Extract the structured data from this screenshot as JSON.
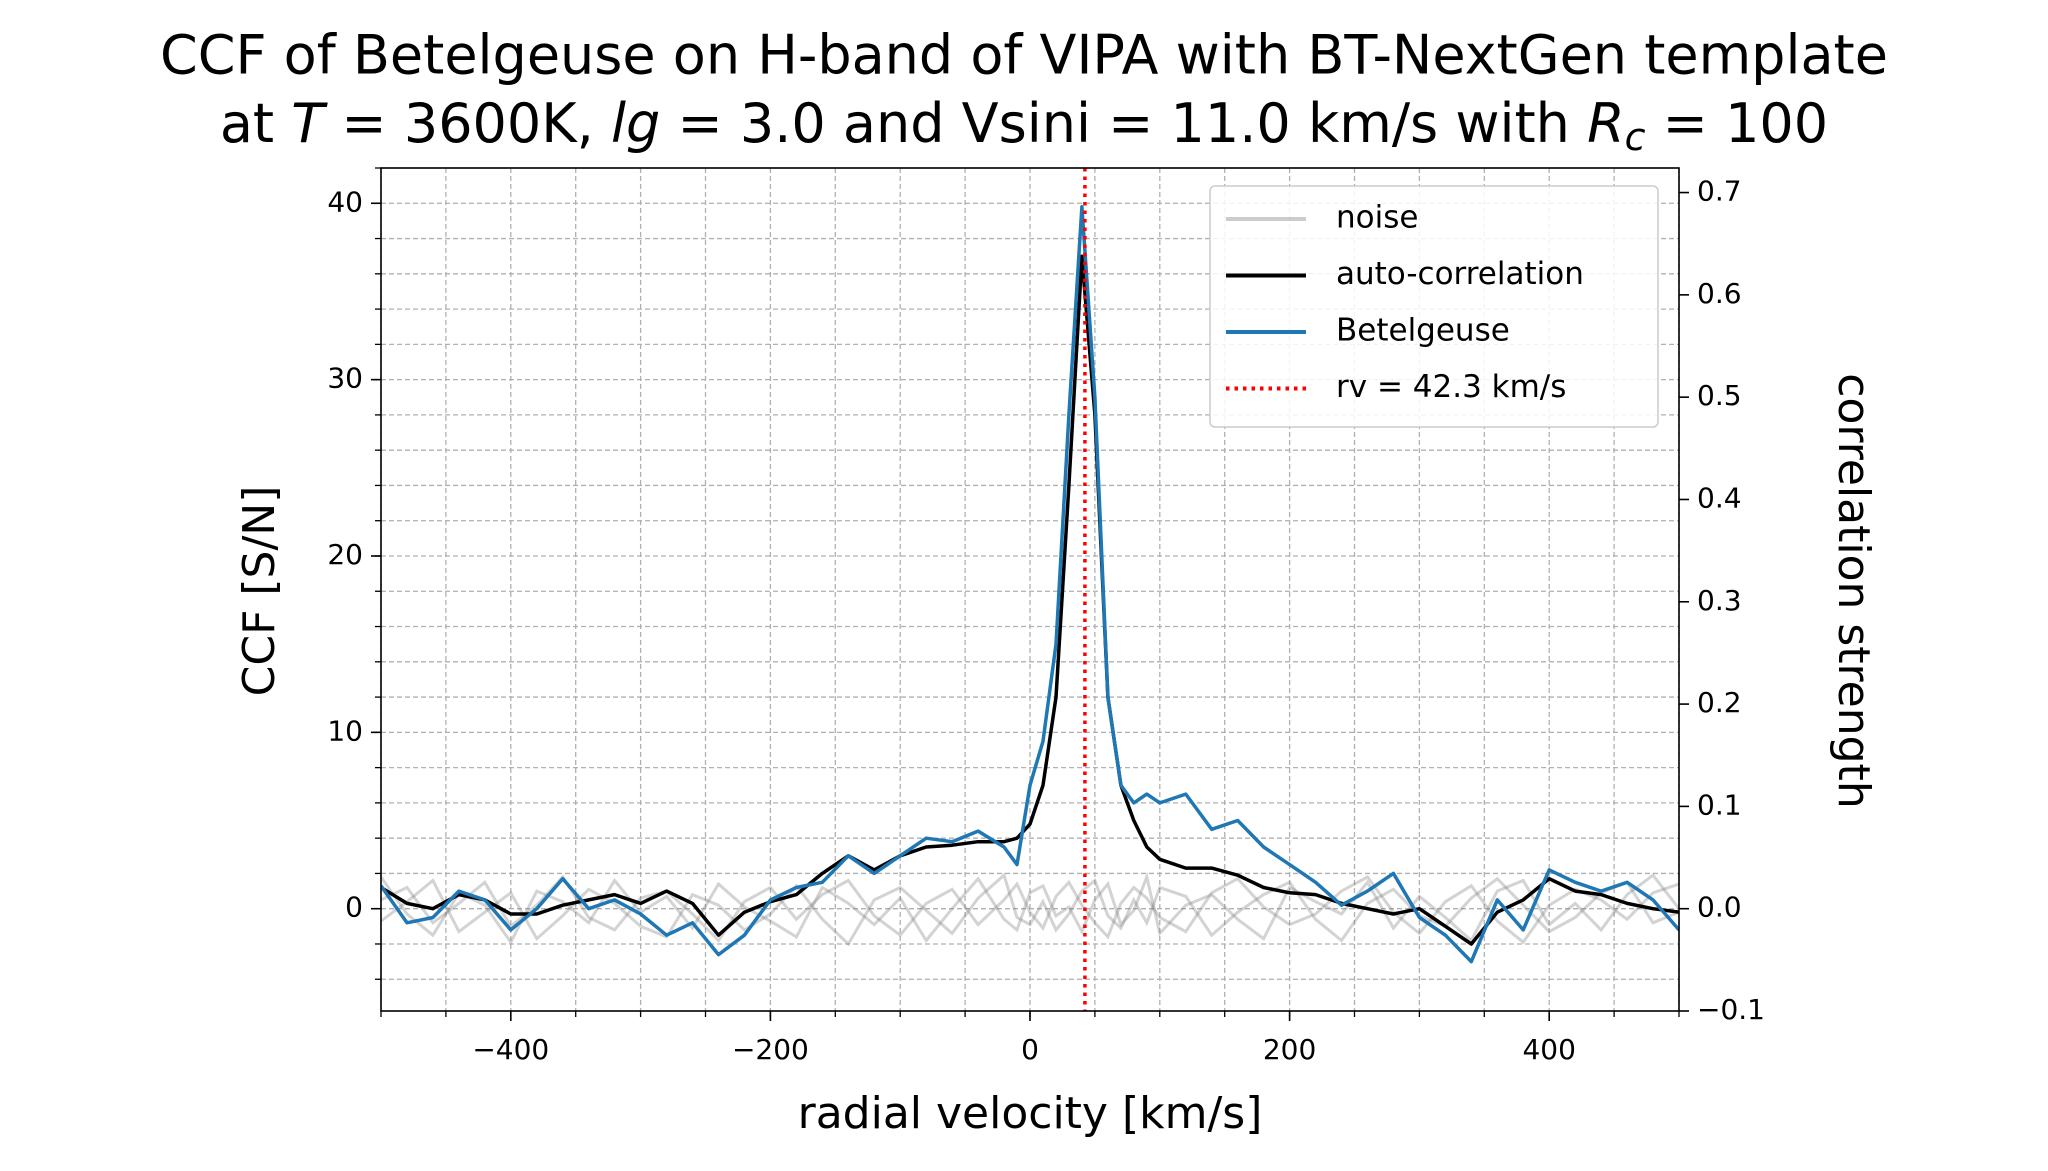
{
  "chart_data": {
    "type": "line",
    "title": {
      "line1": "CCF of Betelgeuse on H-band of VIPA with BT-NextGen template",
      "line2": [
        {
          "text": "at "
        },
        {
          "text": "T",
          "italic": true
        },
        {
          "text": " = 3600K, "
        },
        {
          "text": "lg",
          "italic": true
        },
        {
          "text": " = 3.0 and Vsini = 11.0 km/s with "
        },
        {
          "text": "R",
          "italic": true
        },
        {
          "text": "c",
          "italic": true,
          "sub": true
        },
        {
          "text": " = 100"
        }
      ]
    },
    "xlabel": "radial velocity [km/s]",
    "ylabel": "CCF [S/N]",
    "y2label": "correlation strength",
    "x": [
      -500,
      -480,
      -460,
      -440,
      -420,
      -400,
      -380,
      -360,
      -340,
      -320,
      -300,
      -280,
      -260,
      -240,
      -220,
      -200,
      -180,
      -160,
      -140,
      -120,
      -100,
      -80,
      -60,
      -40,
      -20,
      -10,
      0,
      10,
      20,
      30,
      40,
      50,
      60,
      70,
      80,
      90,
      100,
      120,
      140,
      160,
      180,
      200,
      220,
      240,
      260,
      280,
      300,
      320,
      340,
      360,
      380,
      400,
      420,
      440,
      460,
      480,
      500
    ],
    "series": [
      {
        "name": "noise",
        "color": "#808080",
        "traces": [
          [
            0.5,
            1.2,
            -0.8,
            0.3,
            1.5,
            -1.0,
            0.2,
            1.8,
            -0.5,
            -1.2,
            0.6,
            1.0,
            -0.3,
            -1.8,
            0.4,
            1.2,
            -0.6,
            0.8,
            1.6,
            -0.4,
            -1.5,
            0.3,
            1.1,
            -0.9,
            0.5,
            1.4,
            -0.2,
            -1.1,
            0.7,
            1.5,
            0.2,
            -0.8,
            -1.6,
            0.3,
            1.2,
            0.6,
            -0.5,
            -1.3,
            0.9,
            1.7,
            0.1,
            -0.9,
            -0.3,
            1.0,
            1.8,
            -0.2,
            -1.4,
            0.4,
            1.3,
            -0.7,
            -1.9,
            0.2,
            1.1,
            0.5,
            -0.6,
            0.9,
            1.4
          ],
          [
            -0.7,
            0.4,
            1.6,
            -1.3,
            -0.2,
            0.9,
            -1.7,
            -0.4,
            1.1,
            0.3,
            -1.0,
            -1.6,
            0.8,
            0.2,
            -1.2,
            -0.3,
            1.3,
            -0.6,
            -2.0,
            0.5,
            1.2,
            -0.1,
            -1.4,
            0.6,
            1.9,
            -0.5,
            -0.9,
            0.4,
            -1.2,
            -0.3,
            1.0,
            1.6,
            -0.4,
            -1.1,
            0.5,
            -0.8,
            1.2,
            0.7,
            -1.5,
            -0.2,
            0.8,
            1.5,
            -0.6,
            -1.8,
            0.3,
            1.1,
            -0.4,
            -1.0,
            0.6,
            1.7,
            0.2,
            -1.3,
            -0.5,
            0.9,
            1.5,
            -0.8,
            -0.2
          ],
          [
            1.8,
            -0.3,
            -1.5,
            0.9,
            0.2,
            -1.9,
            1.0,
            0.4,
            -0.8,
            1.6,
            -0.2,
            0.7,
            -1.1,
            1.4,
            0.1,
            -0.7,
            -1.6,
            1.2,
            0.3,
            -0.9,
            0.6,
            -1.8,
            0.0,
            1.7,
            -0.6,
            -1.2,
            0.9,
            1.3,
            -0.4,
            0.1,
            -1.3,
            0.5,
            1.4,
            -0.9,
            -0.1,
            1.8,
            -1.4,
            0.2,
            0.8,
            -0.6,
            -1.7,
            1.2,
            0.4,
            -0.3,
            1.5,
            -1.1,
            0.7,
            -0.5,
            -1.8,
            1.0,
            1.6,
            -0.9,
            0.3,
            -1.2,
            0.8,
            1.9,
            0.0
          ]
        ]
      },
      {
        "name": "auto-correlation",
        "color": "#000000",
        "values": [
          1.2,
          0.3,
          0.0,
          0.8,
          0.5,
          -0.3,
          -0.3,
          0.2,
          0.5,
          0.8,
          0.3,
          1.0,
          0.3,
          -1.5,
          -0.2,
          0.4,
          0.8,
          2.0,
          3.0,
          2.2,
          3.0,
          3.5,
          3.6,
          3.8,
          3.8,
          4.0,
          4.8,
          7,
          12,
          24,
          37,
          28,
          12,
          7,
          5,
          3.5,
          2.8,
          2.3,
          2.3,
          1.9,
          1.2,
          0.9,
          0.8,
          0.3,
          0.0,
          -0.3,
          0.0,
          -1.0,
          -2.0,
          -0.2,
          0.5,
          1.7,
          1.0,
          0.8,
          0.3,
          0.0,
          -0.2
        ]
      },
      {
        "name": "Betelgeuse",
        "color": "#1f77b4",
        "values": [
          1.3,
          -0.8,
          -0.5,
          1.0,
          0.5,
          -1.2,
          0.0,
          1.7,
          0.0,
          0.5,
          -0.3,
          -1.5,
          -0.8,
          -2.6,
          -1.5,
          0.5,
          1.2,
          1.5,
          3.0,
          2.0,
          3.0,
          4.0,
          3.8,
          4.4,
          3.5,
          2.5,
          7.0,
          9.5,
          15,
          28,
          39.8,
          29,
          12,
          7,
          6,
          6.5,
          6.0,
          6.5,
          4.5,
          5.0,
          3.5,
          2.5,
          1.5,
          0.2,
          1.0,
          2.0,
          -0.5,
          -1.5,
          -3.0,
          0.5,
          -1.2,
          2.2,
          1.5,
          1.0,
          1.5,
          0.5,
          -1.2
        ]
      }
    ],
    "vline": {
      "name": "rv = 42.3 km/s",
      "x": 42.3,
      "color": "#ff0000"
    },
    "xlim": [
      -500,
      500
    ],
    "xticks": [
      {
        "value": -400,
        "label": "−400"
      },
      {
        "value": -200,
        "label": "−200"
      },
      0,
      200,
      400
    ],
    "ylim": [
      -5.8,
      42
    ],
    "yticks": [
      0,
      10,
      20,
      30,
      40
    ],
    "y2lim": [
      -0.1,
      0.724
    ],
    "y2ticks": [
      {
        "value": -0.1,
        "label": "−0.1"
      },
      {
        "value": 0,
        "label": "0.0"
      },
      {
        "value": 0.1,
        "label": "0.1"
      },
      {
        "value": 0.2,
        "label": "0.2"
      },
      {
        "value": 0.3,
        "label": "0.3"
      },
      {
        "value": 0.4,
        "label": "0.4"
      },
      {
        "value": 0.5,
        "label": "0.5"
      },
      {
        "value": 0.6,
        "label": "0.6"
      },
      {
        "value": 0.7,
        "label": "0.7"
      }
    ],
    "grid": true,
    "minor_grid": {
      "x": 50,
      "y": 2
    },
    "legend": "upper right"
  }
}
